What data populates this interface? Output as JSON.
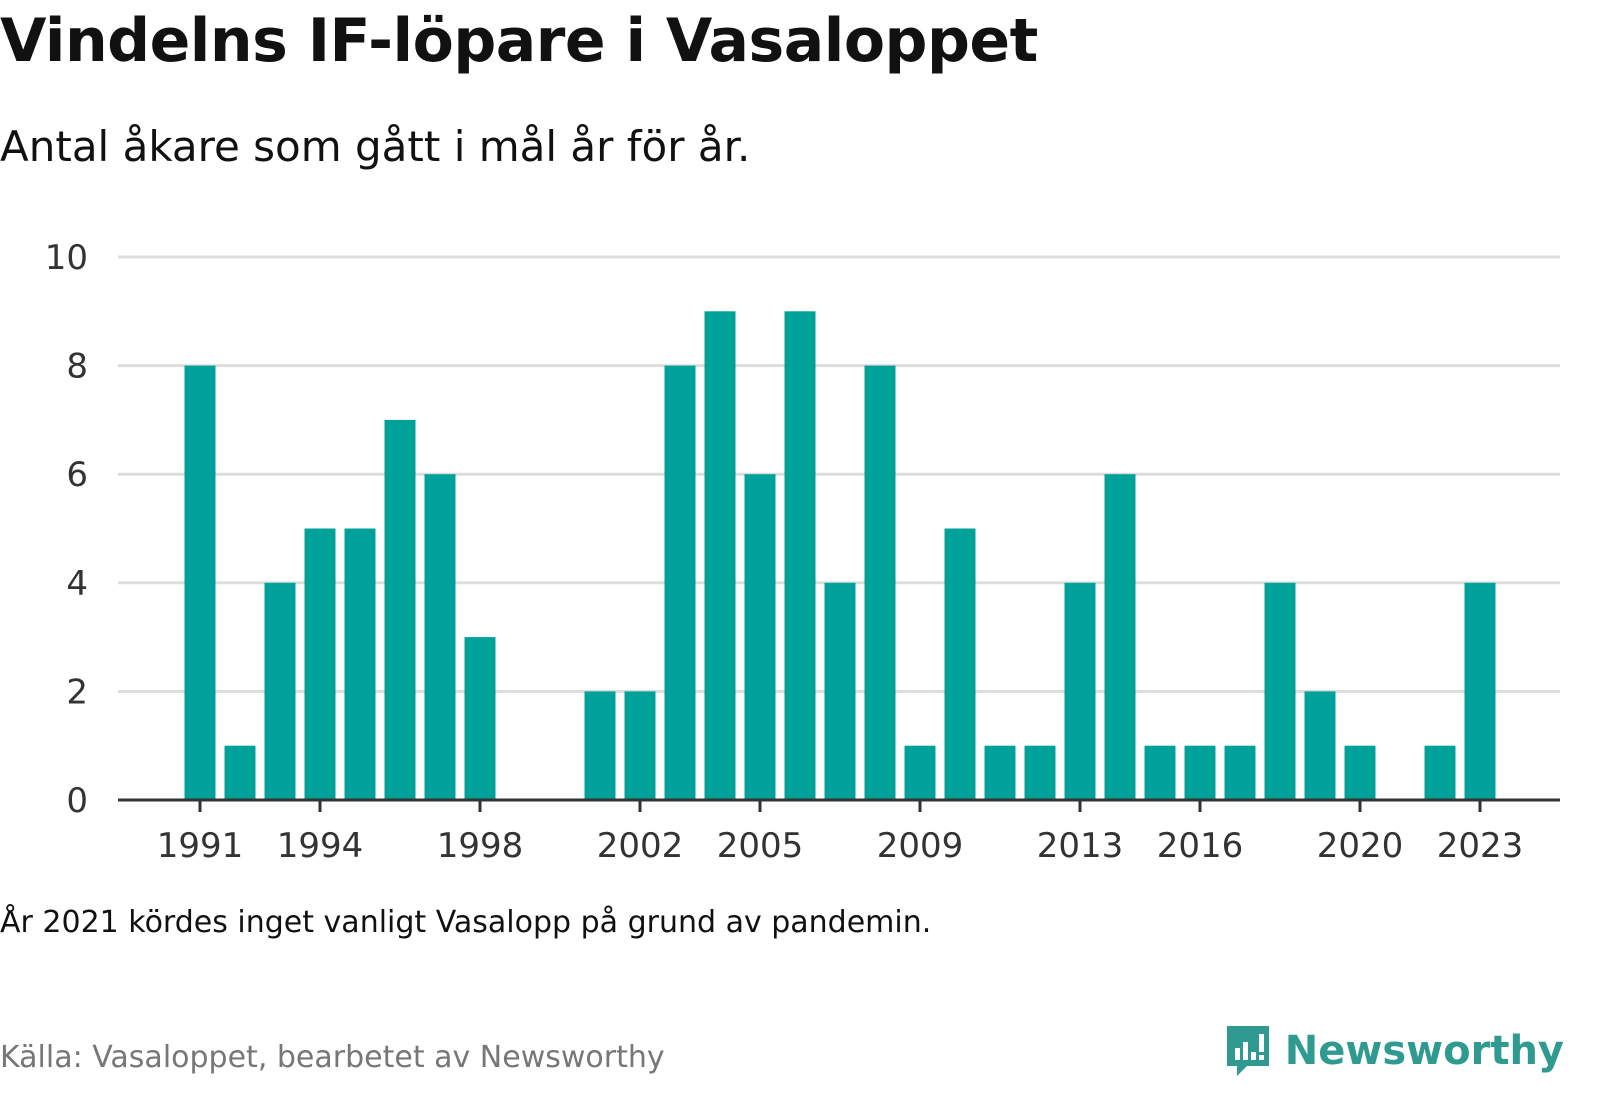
{
  "title": "Vindelns IF-löpare i Vasaloppet",
  "subtitle": "Antal åkare som gått i mål år för år.",
  "note": "År 2021 kördes inget vanligt Vasalopp på grund av pandemin.",
  "source": "Källa: Vasaloppet, bearbetet av Newsworthy",
  "brand": {
    "name": "Newsworthy",
    "icon": "newsworthy-logo-icon",
    "color": "#2f9a8f"
  },
  "colors": {
    "bar": "#00a19a",
    "grid": "#dddddd",
    "axis": "#333333"
  },
  "chart_data": {
    "type": "bar",
    "x": [
      1991,
      1992,
      1993,
      1994,
      1995,
      1996,
      1997,
      1998,
      1999,
      2000,
      2001,
      2002,
      2003,
      2004,
      2005,
      2006,
      2007,
      2008,
      2009,
      2010,
      2011,
      2012,
      2013,
      2014,
      2015,
      2016,
      2017,
      2018,
      2019,
      2020,
      2021,
      2022,
      2023
    ],
    "values": [
      8,
      1,
      4,
      5,
      5,
      7,
      6,
      3,
      0,
      0,
      2,
      2,
      8,
      9,
      6,
      9,
      4,
      8,
      1,
      5,
      1,
      1,
      4,
      6,
      1,
      1,
      1,
      4,
      2,
      1,
      0,
      1,
      4
    ],
    "x_ticks": [
      1991,
      1994,
      1998,
      2002,
      2005,
      2009,
      2013,
      2016,
      2020,
      2023
    ],
    "y_ticks": [
      0,
      2,
      4,
      6,
      8,
      10
    ],
    "ylim": [
      0,
      10
    ],
    "xlabel": "",
    "ylabel": "",
    "grid": true,
    "legend": "none"
  }
}
